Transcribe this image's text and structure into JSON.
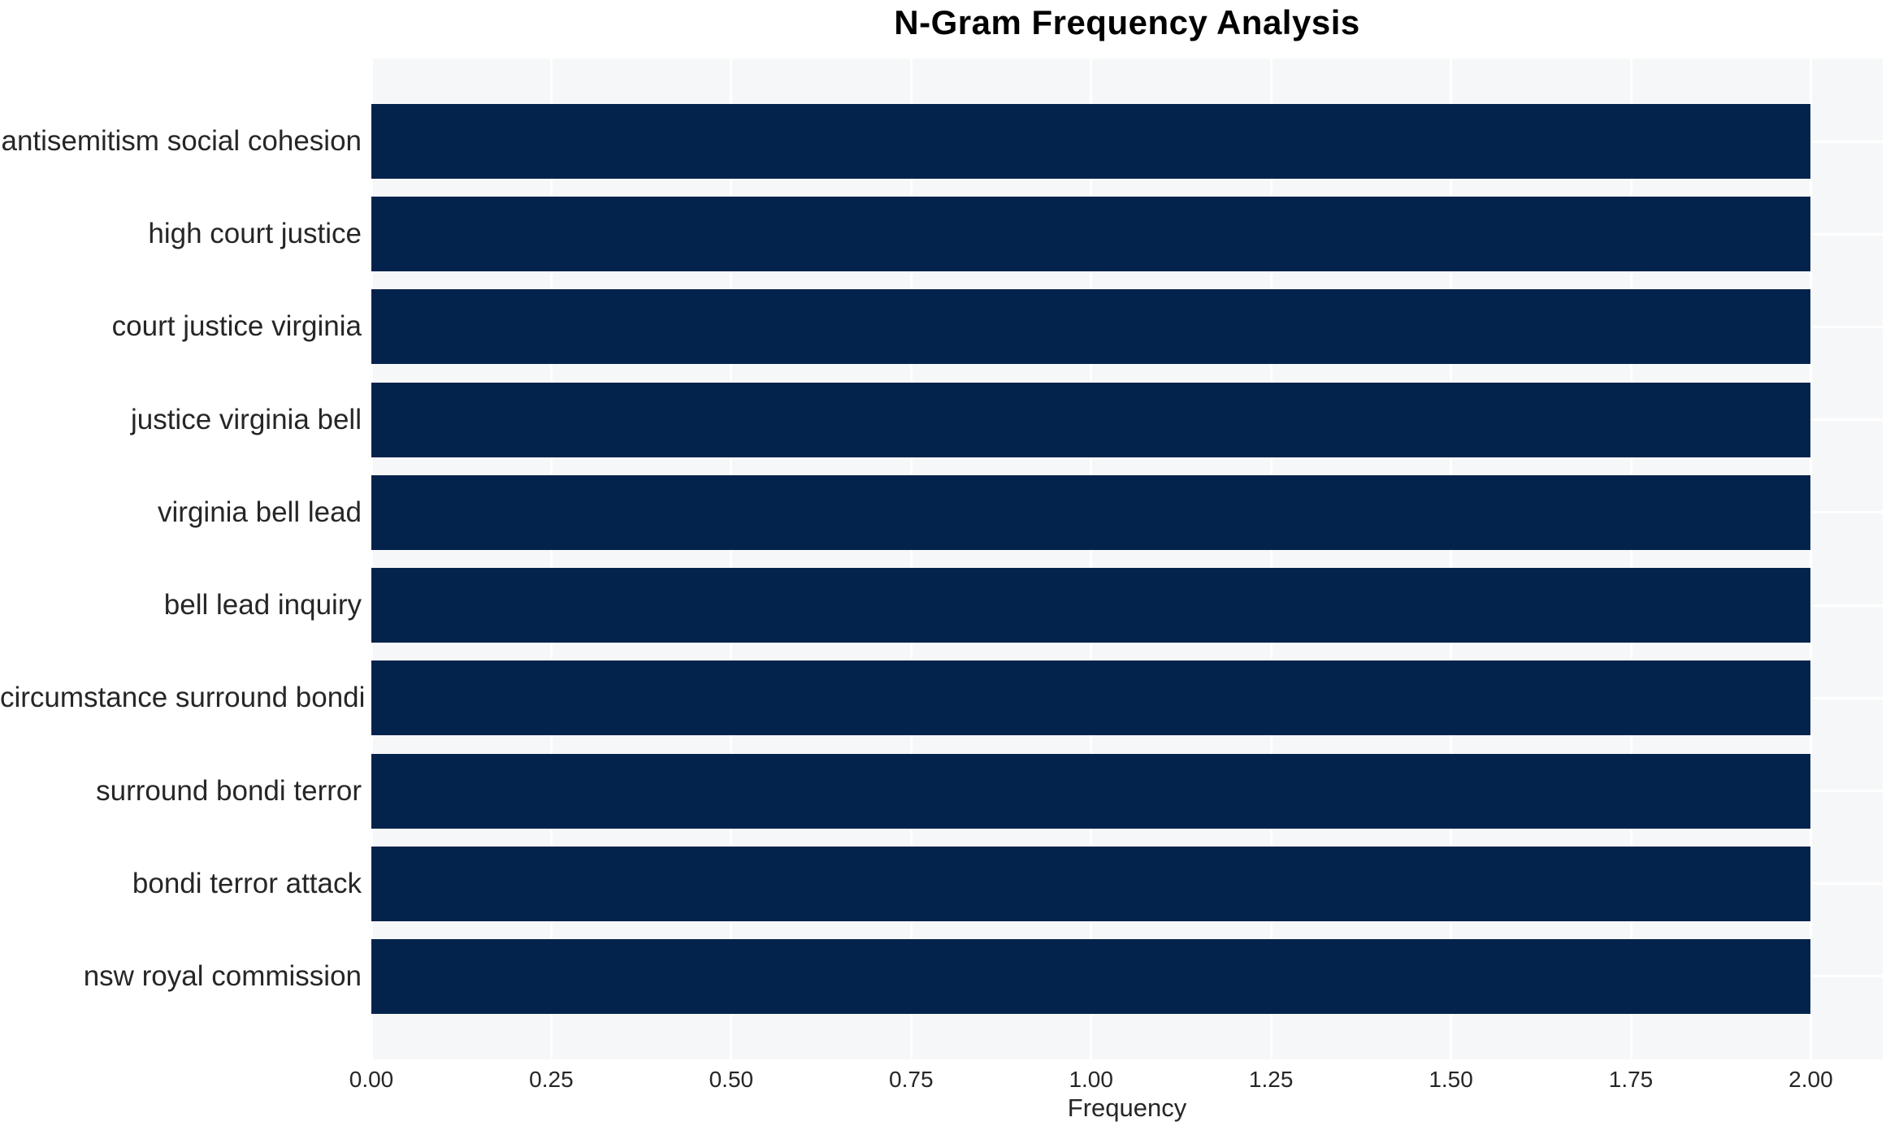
{
  "page": {
    "background_color": "#ffffff",
    "text_color": "#262626",
    "title_color": "#000000"
  },
  "chart_data": {
    "type": "bar",
    "orientation": "horizontal",
    "title": "N-Gram Frequency Analysis",
    "xlabel": "Frequency",
    "ylabel": "",
    "categories": [
      "antisemitism social cohesion",
      "high court justice",
      "court justice virginia",
      "justice virginia bell",
      "virginia bell lead",
      "bell lead inquiry",
      "circumstance surround bondi",
      "surround bondi terror",
      "bondi terror attack",
      "nsw royal commission"
    ],
    "values": [
      2,
      2,
      2,
      2,
      2,
      2,
      2,
      2,
      2,
      2
    ],
    "xlim": [
      0,
      2.1
    ],
    "xticks": [
      0,
      0.25,
      0.5,
      0.75,
      1,
      1.25,
      1.5,
      1.75,
      2
    ],
    "xtick_labels": [
      "0.00",
      "0.25",
      "0.50",
      "0.75",
      "1.00",
      "1.25",
      "1.50",
      "1.75",
      "2.00"
    ],
    "grid": true,
    "legend": false,
    "bar_color": "#04234c",
    "plot_background": "#f6f7f8",
    "grid_color": "#ffffff"
  }
}
